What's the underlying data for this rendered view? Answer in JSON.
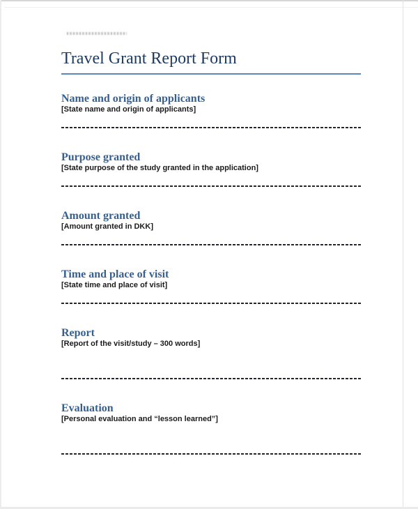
{
  "page": {
    "title": "Travel Grant Report Form"
  },
  "sections": [
    {
      "heading": "Name and origin of applicants",
      "placeholder": "[State name and origin of applicants]"
    },
    {
      "heading": "Purpose granted",
      "placeholder": "[State purpose of the study granted in the application]"
    },
    {
      "heading": "Amount granted",
      "placeholder": "[Amount granted in DKK]"
    },
    {
      "heading": "Time and place of visit",
      "placeholder": "[State time and place of visit]"
    },
    {
      "heading": "Report",
      "placeholder": "[Report of the visit/study – 300 words]"
    },
    {
      "heading": "Evaluation",
      "placeholder": "[Personal evaluation and “lesson learned”]"
    }
  ],
  "colors": {
    "title_text": "#1f3a5f",
    "title_rule": "#5b87bd",
    "section_heading": "#365f91",
    "body_text": "#1b1b1b",
    "answer_line": "#26262e",
    "page_background": "#ffffff",
    "scan_edge": "#d6d6d6"
  }
}
